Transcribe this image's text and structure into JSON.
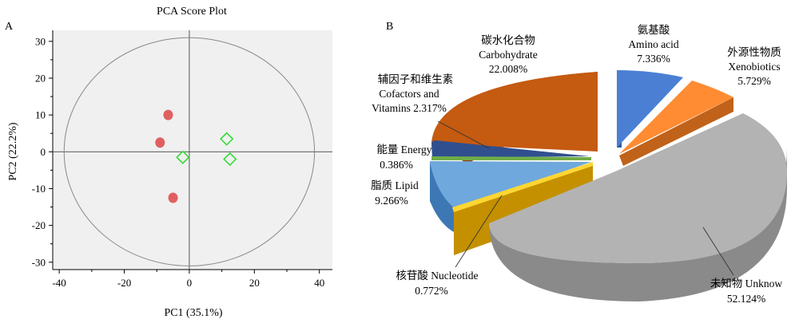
{
  "chart_data": [
    {
      "type": "scatter",
      "panel_label": "A",
      "title": "PCA Score Plot",
      "xlabel": "PC1 (35.1%)",
      "ylabel": "PC2 (22.2%)",
      "xlim": [
        -42,
        44
      ],
      "ylim": [
        -32,
        33
      ],
      "xticks": [
        "-40",
        "-20",
        "0",
        "20",
        "40"
      ],
      "yticks": [
        "30",
        "20",
        "10",
        "0",
        "-10",
        "-20",
        "-30"
      ],
      "grid": false,
      "confidence_ellipse": {
        "cx": 0,
        "cy": 0,
        "rx": 38.5,
        "ry": 31
      },
      "series": [
        {
          "marker": "circle",
          "color": "#e06060",
          "points": [
            [
              -6.5,
              10
            ],
            [
              -9,
              2.5
            ],
            [
              -5,
              -12.5
            ]
          ]
        },
        {
          "marker": "diamond",
          "color": "#33dd33",
          "points": [
            [
              -2,
              -1.5
            ],
            [
              11.5,
              3.5
            ],
            [
              12.5,
              -2
            ]
          ]
        }
      ]
    },
    {
      "type": "pie",
      "panel_label": "B",
      "style": "3d-exploded",
      "slices": [
        {
          "label_cn": "未知物",
          "label_en": "Unknow",
          "value": 52.124,
          "pct": "52.124%",
          "color": "#b3b3b3"
        },
        {
          "label_cn": "核苷酸",
          "label_en": "Nucleotide",
          "value": 0.772,
          "pct": "0.772%",
          "color": "#ffd633"
        },
        {
          "label_cn": "脂质",
          "label_en": "Lipid",
          "value": 9.266,
          "pct": "9.266%",
          "color": "#f0b000"
        },
        {
          "label_cn": "",
          "label_en": "",
          "value": 0,
          "pct": "",
          "color": "#6fa8dc"
        },
        {
          "label_cn": "能量",
          "label_en": "Energy",
          "value": 0.386,
          "pct": "0.386%",
          "color": "#70ad47"
        },
        {
          "label_cn": "辅因子和维生素",
          "label_en": "Cofactors and Vitamins",
          "value": 2.317,
          "pct": "2.317%",
          "color": "#2f4f8f"
        },
        {
          "label_cn": "碳水化合物",
          "label_en": "Carbohydrate",
          "value": 22.008,
          "pct": "22.008%",
          "color": "#c55a11"
        },
        {
          "label_cn": "氨基酸",
          "label_en": "Amino acid",
          "value": 7.336,
          "pct": "7.336%",
          "color": "#4a7fd4"
        },
        {
          "label_cn": "外源性物质",
          "label_en": "Xenobiotics",
          "value": 5.729,
          "pct": "5.729%",
          "color": "#ff8c33"
        }
      ]
    }
  ],
  "labels": {
    "carb_cn": "碳水化合物",
    "carb_en": "Carbohydrate",
    "carb_pct": "22.008%",
    "amino_cn": "氨基酸",
    "amino_en": "Amino acid",
    "amino_pct": "7.336%",
    "xeno_cn": "外源性物质",
    "xeno_en": "Xenobiotics",
    "xeno_pct": "5.729%",
    "cof_cn": "辅因子和维生素",
    "cof_en1": "Cofactors and",
    "cof_en2": "Vitamins 2.317%",
    "energy_line": "能量 Energy",
    "energy_pct": "0.386%",
    "lipid_line": "脂质 Lipid",
    "lipid_pct": "9.266%",
    "nuc_line": "核苷酸 Nucleotide",
    "nuc_pct": "0.772%",
    "unk_line": "未知物 Unknow",
    "unk_pct": "52.124%"
  }
}
